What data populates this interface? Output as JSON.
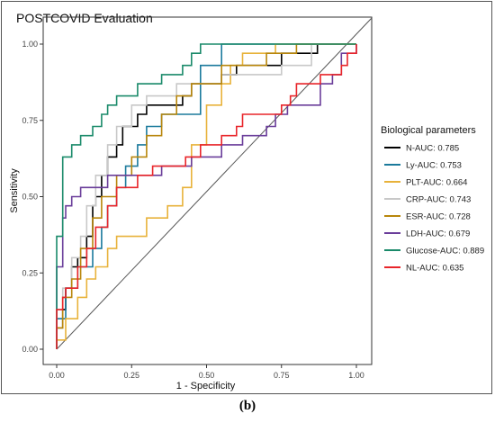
{
  "caption": "(b)",
  "chart_data": {
    "type": "line",
    "title": "POSTCOVID Evaluation",
    "xlabel": "1 - Specificity",
    "ylabel": "Sensitivity",
    "xlim": [
      0,
      1
    ],
    "ylim": [
      0,
      1
    ],
    "xticks": [
      "0.00",
      "0.25",
      "0.50",
      "0.75",
      "1.00"
    ],
    "yticks": [
      "0.00",
      "0.25",
      "0.50",
      "0.75",
      "1.00"
    ],
    "grid": false,
    "legend_title": "Biological parameters",
    "legend_position": "right",
    "reference_line": true,
    "series": [
      {
        "name": "N-AUC: 0.785",
        "color": "#000000",
        "points": [
          [
            0,
            0
          ],
          [
            0,
            0.07
          ],
          [
            0.02,
            0.07
          ],
          [
            0.02,
            0.13
          ],
          [
            0.03,
            0.13
          ],
          [
            0.03,
            0.2
          ],
          [
            0.05,
            0.2
          ],
          [
            0.05,
            0.27
          ],
          [
            0.07,
            0.27
          ],
          [
            0.07,
            0.3
          ],
          [
            0.1,
            0.3
          ],
          [
            0.1,
            0.37
          ],
          [
            0.12,
            0.37
          ],
          [
            0.12,
            0.47
          ],
          [
            0.13,
            0.47
          ],
          [
            0.13,
            0.5
          ],
          [
            0.15,
            0.5
          ],
          [
            0.15,
            0.57
          ],
          [
            0.17,
            0.57
          ],
          [
            0.17,
            0.63
          ],
          [
            0.2,
            0.63
          ],
          [
            0.2,
            0.67
          ],
          [
            0.22,
            0.67
          ],
          [
            0.22,
            0.73
          ],
          [
            0.27,
            0.73
          ],
          [
            0.27,
            0.77
          ],
          [
            0.3,
            0.77
          ],
          [
            0.3,
            0.8
          ],
          [
            0.42,
            0.8
          ],
          [
            0.42,
            0.83
          ],
          [
            0.45,
            0.83
          ],
          [
            0.45,
            0.87
          ],
          [
            0.55,
            0.87
          ],
          [
            0.55,
            0.9
          ],
          [
            0.6,
            0.9
          ],
          [
            0.6,
            0.93
          ],
          [
            0.75,
            0.93
          ],
          [
            0.75,
            0.97
          ],
          [
            0.87,
            0.97
          ],
          [
            0.87,
            1
          ],
          [
            1,
            1
          ]
        ]
      },
      {
        "name": "Ly-AUC: 0.753",
        "color": "#1b7a9c",
        "points": [
          [
            0,
            0
          ],
          [
            0,
            0.1
          ],
          [
            0.03,
            0.1
          ],
          [
            0.03,
            0.2
          ],
          [
            0.07,
            0.2
          ],
          [
            0.07,
            0.27
          ],
          [
            0.12,
            0.27
          ],
          [
            0.12,
            0.33
          ],
          [
            0.15,
            0.33
          ],
          [
            0.15,
            0.4
          ],
          [
            0.17,
            0.4
          ],
          [
            0.17,
            0.47
          ],
          [
            0.2,
            0.47
          ],
          [
            0.2,
            0.53
          ],
          [
            0.23,
            0.53
          ],
          [
            0.23,
            0.6
          ],
          [
            0.27,
            0.6
          ],
          [
            0.27,
            0.67
          ],
          [
            0.3,
            0.67
          ],
          [
            0.3,
            0.73
          ],
          [
            0.35,
            0.73
          ],
          [
            0.35,
            0.77
          ],
          [
            0.48,
            0.77
          ],
          [
            0.48,
            0.93
          ],
          [
            0.55,
            0.93
          ],
          [
            0.55,
            1
          ],
          [
            1,
            1
          ]
        ]
      },
      {
        "name": "PLT-AUC: 0.664",
        "color": "#e8b23a",
        "points": [
          [
            0,
            0
          ],
          [
            0,
            0.03
          ],
          [
            0.03,
            0.03
          ],
          [
            0.03,
            0.1
          ],
          [
            0.07,
            0.1
          ],
          [
            0.07,
            0.17
          ],
          [
            0.1,
            0.17
          ],
          [
            0.1,
            0.23
          ],
          [
            0.13,
            0.23
          ],
          [
            0.13,
            0.27
          ],
          [
            0.17,
            0.27
          ],
          [
            0.17,
            0.33
          ],
          [
            0.2,
            0.33
          ],
          [
            0.2,
            0.37
          ],
          [
            0.3,
            0.37
          ],
          [
            0.3,
            0.43
          ],
          [
            0.37,
            0.43
          ],
          [
            0.37,
            0.47
          ],
          [
            0.42,
            0.47
          ],
          [
            0.42,
            0.53
          ],
          [
            0.45,
            0.53
          ],
          [
            0.45,
            0.67
          ],
          [
            0.5,
            0.67
          ],
          [
            0.5,
            0.8
          ],
          [
            0.55,
            0.8
          ],
          [
            0.55,
            0.87
          ],
          [
            0.58,
            0.87
          ],
          [
            0.58,
            0.93
          ],
          [
            0.62,
            0.93
          ],
          [
            0.62,
            0.97
          ],
          [
            0.73,
            0.97
          ],
          [
            0.73,
            1
          ],
          [
            1,
            1
          ]
        ]
      },
      {
        "name": "CRP-AUC: 0.743",
        "color": "#c8c8c8",
        "points": [
          [
            0,
            0
          ],
          [
            0,
            0.13
          ],
          [
            0.02,
            0.13
          ],
          [
            0.02,
            0.2
          ],
          [
            0.05,
            0.2
          ],
          [
            0.05,
            0.3
          ],
          [
            0.08,
            0.3
          ],
          [
            0.08,
            0.37
          ],
          [
            0.1,
            0.37
          ],
          [
            0.1,
            0.47
          ],
          [
            0.13,
            0.47
          ],
          [
            0.13,
            0.57
          ],
          [
            0.17,
            0.57
          ],
          [
            0.17,
            0.67
          ],
          [
            0.2,
            0.67
          ],
          [
            0.2,
            0.73
          ],
          [
            0.25,
            0.73
          ],
          [
            0.25,
            0.8
          ],
          [
            0.3,
            0.8
          ],
          [
            0.3,
            0.83
          ],
          [
            0.4,
            0.83
          ],
          [
            0.4,
            0.87
          ],
          [
            0.55,
            0.87
          ],
          [
            0.55,
            0.9
          ],
          [
            0.75,
            0.9
          ],
          [
            0.75,
            0.93
          ],
          [
            0.85,
            0.93
          ],
          [
            0.85,
            1
          ],
          [
            1,
            1
          ]
        ]
      },
      {
        "name": "ESR-AUC: 0.728",
        "color": "#b8860b",
        "points": [
          [
            0,
            0
          ],
          [
            0,
            0.07
          ],
          [
            0.02,
            0.07
          ],
          [
            0.02,
            0.17
          ],
          [
            0.05,
            0.17
          ],
          [
            0.05,
            0.23
          ],
          [
            0.08,
            0.23
          ],
          [
            0.08,
            0.33
          ],
          [
            0.12,
            0.33
          ],
          [
            0.12,
            0.43
          ],
          [
            0.15,
            0.43
          ],
          [
            0.15,
            0.5
          ],
          [
            0.2,
            0.5
          ],
          [
            0.2,
            0.57
          ],
          [
            0.25,
            0.57
          ],
          [
            0.25,
            0.63
          ],
          [
            0.3,
            0.63
          ],
          [
            0.3,
            0.7
          ],
          [
            0.35,
            0.7
          ],
          [
            0.35,
            0.77
          ],
          [
            0.4,
            0.77
          ],
          [
            0.4,
            0.83
          ],
          [
            0.45,
            0.83
          ],
          [
            0.45,
            0.87
          ],
          [
            0.55,
            0.87
          ],
          [
            0.55,
            0.93
          ],
          [
            0.7,
            0.93
          ],
          [
            0.7,
            0.97
          ],
          [
            0.8,
            0.97
          ],
          [
            0.8,
            1
          ],
          [
            1,
            1
          ]
        ]
      },
      {
        "name": "LDH-AUC: 0.679",
        "color": "#6a3d9a",
        "points": [
          [
            0,
            0
          ],
          [
            0,
            0.27
          ],
          [
            0.02,
            0.27
          ],
          [
            0.02,
            0.43
          ],
          [
            0.03,
            0.43
          ],
          [
            0.03,
            0.47
          ],
          [
            0.05,
            0.47
          ],
          [
            0.05,
            0.5
          ],
          [
            0.08,
            0.5
          ],
          [
            0.08,
            0.53
          ],
          [
            0.17,
            0.53
          ],
          [
            0.17,
            0.57
          ],
          [
            0.35,
            0.57
          ],
          [
            0.35,
            0.6
          ],
          [
            0.45,
            0.6
          ],
          [
            0.45,
            0.63
          ],
          [
            0.55,
            0.63
          ],
          [
            0.55,
            0.67
          ],
          [
            0.62,
            0.67
          ],
          [
            0.62,
            0.7
          ],
          [
            0.7,
            0.7
          ],
          [
            0.7,
            0.73
          ],
          [
            0.73,
            0.73
          ],
          [
            0.73,
            0.77
          ],
          [
            0.77,
            0.77
          ],
          [
            0.77,
            0.8
          ],
          [
            0.88,
            0.8
          ],
          [
            0.88,
            0.87
          ],
          [
            0.92,
            0.87
          ],
          [
            0.92,
            0.9
          ],
          [
            0.95,
            0.9
          ],
          [
            0.95,
            0.97
          ],
          [
            1,
            0.97
          ],
          [
            1,
            1
          ]
        ]
      },
      {
        "name": "Glucose-AUC: 0.889",
        "color": "#1a8a6a",
        "points": [
          [
            0,
            0
          ],
          [
            0,
            0.37
          ],
          [
            0.02,
            0.37
          ],
          [
            0.02,
            0.63
          ],
          [
            0.05,
            0.63
          ],
          [
            0.05,
            0.67
          ],
          [
            0.08,
            0.67
          ],
          [
            0.08,
            0.7
          ],
          [
            0.12,
            0.7
          ],
          [
            0.12,
            0.73
          ],
          [
            0.15,
            0.73
          ],
          [
            0.15,
            0.77
          ],
          [
            0.17,
            0.77
          ],
          [
            0.17,
            0.8
          ],
          [
            0.2,
            0.8
          ],
          [
            0.2,
            0.83
          ],
          [
            0.27,
            0.83
          ],
          [
            0.27,
            0.87
          ],
          [
            0.35,
            0.87
          ],
          [
            0.35,
            0.9
          ],
          [
            0.42,
            0.9
          ],
          [
            0.42,
            0.93
          ],
          [
            0.45,
            0.93
          ],
          [
            0.45,
            0.97
          ],
          [
            0.48,
            0.97
          ],
          [
            0.48,
            1
          ],
          [
            1,
            1
          ]
        ]
      },
      {
        "name": "NL-AUC: 0.635",
        "color": "#e8252a",
        "points": [
          [
            0,
            0
          ],
          [
            0,
            0.13
          ],
          [
            0.02,
            0.13
          ],
          [
            0.02,
            0.17
          ],
          [
            0.03,
            0.17
          ],
          [
            0.03,
            0.2
          ],
          [
            0.07,
            0.2
          ],
          [
            0.07,
            0.27
          ],
          [
            0.1,
            0.27
          ],
          [
            0.1,
            0.33
          ],
          [
            0.13,
            0.33
          ],
          [
            0.13,
            0.4
          ],
          [
            0.17,
            0.4
          ],
          [
            0.17,
            0.47
          ],
          [
            0.2,
            0.47
          ],
          [
            0.2,
            0.53
          ],
          [
            0.27,
            0.53
          ],
          [
            0.27,
            0.57
          ],
          [
            0.32,
            0.57
          ],
          [
            0.32,
            0.6
          ],
          [
            0.43,
            0.6
          ],
          [
            0.43,
            0.63
          ],
          [
            0.48,
            0.63
          ],
          [
            0.48,
            0.67
          ],
          [
            0.55,
            0.67
          ],
          [
            0.55,
            0.7
          ],
          [
            0.6,
            0.7
          ],
          [
            0.6,
            0.73
          ],
          [
            0.62,
            0.73
          ],
          [
            0.62,
            0.77
          ],
          [
            0.75,
            0.77
          ],
          [
            0.75,
            0.8
          ],
          [
            0.78,
            0.8
          ],
          [
            0.78,
            0.83
          ],
          [
            0.8,
            0.83
          ],
          [
            0.8,
            0.87
          ],
          [
            0.88,
            0.87
          ],
          [
            0.88,
            0.9
          ],
          [
            0.95,
            0.9
          ],
          [
            0.95,
            0.93
          ],
          [
            0.97,
            0.93
          ],
          [
            0.97,
            0.97
          ],
          [
            1,
            0.97
          ],
          [
            1,
            1
          ]
        ]
      }
    ]
  }
}
